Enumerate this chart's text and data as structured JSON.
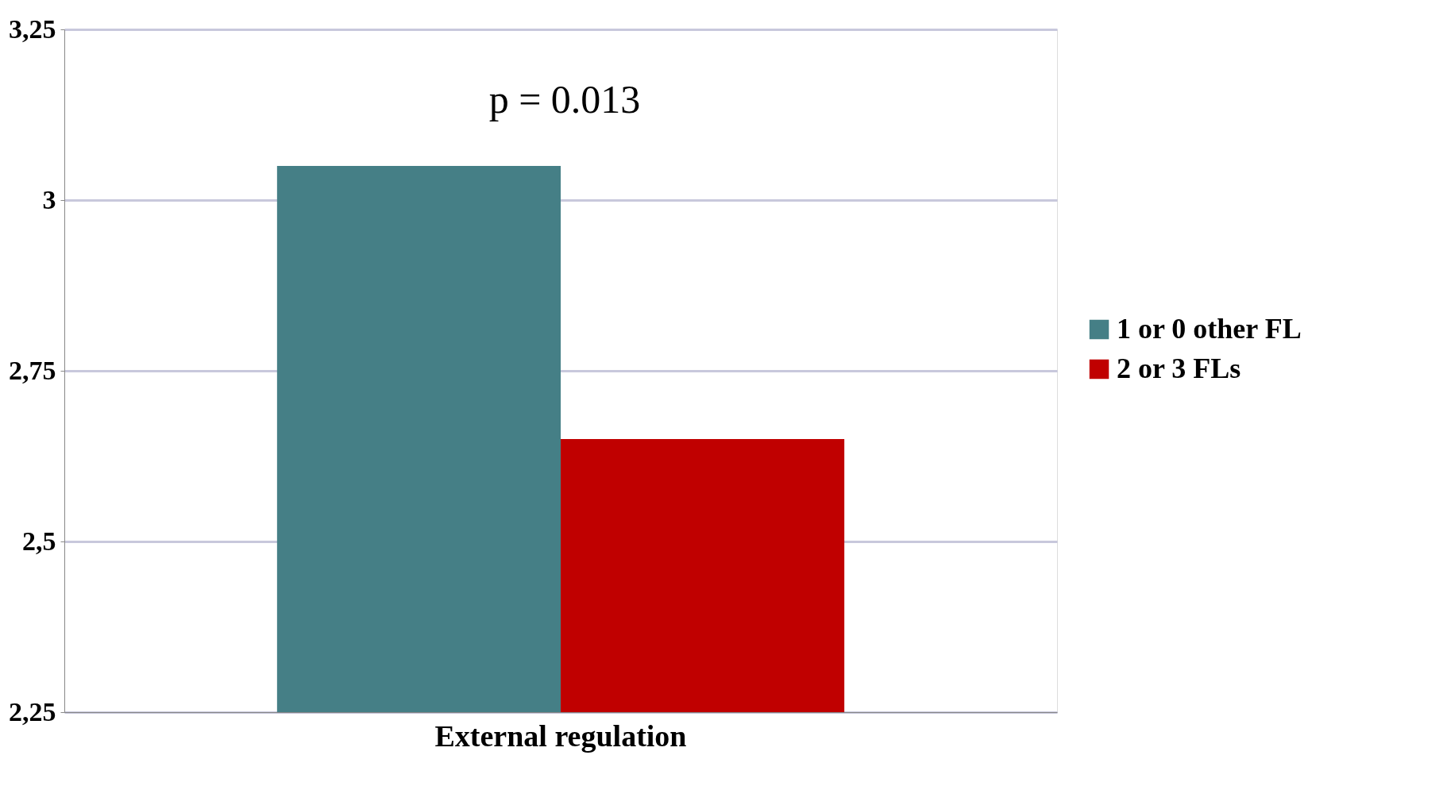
{
  "chart_data": {
    "type": "bar",
    "categories": [
      "External regulation"
    ],
    "series": [
      {
        "name": "1 or 0 other FL",
        "color": "#457f86",
        "values": [
          3.05
        ]
      },
      {
        "name": "2 or 3 FLs",
        "color": "#c00000",
        "values": [
          2.65
        ]
      }
    ],
    "ylim": [
      2.25,
      3.25
    ],
    "yticks": [
      {
        "value": 2.25,
        "label": "2,25"
      },
      {
        "value": 2.5,
        "label": "2,5"
      },
      {
        "value": 2.75,
        "label": "2,75"
      },
      3,
      {
        "value": 3.25,
        "label": "3,25"
      }
    ],
    "annotations": [
      "p = 0.013"
    ],
    "grid": true,
    "legend": "right"
  }
}
